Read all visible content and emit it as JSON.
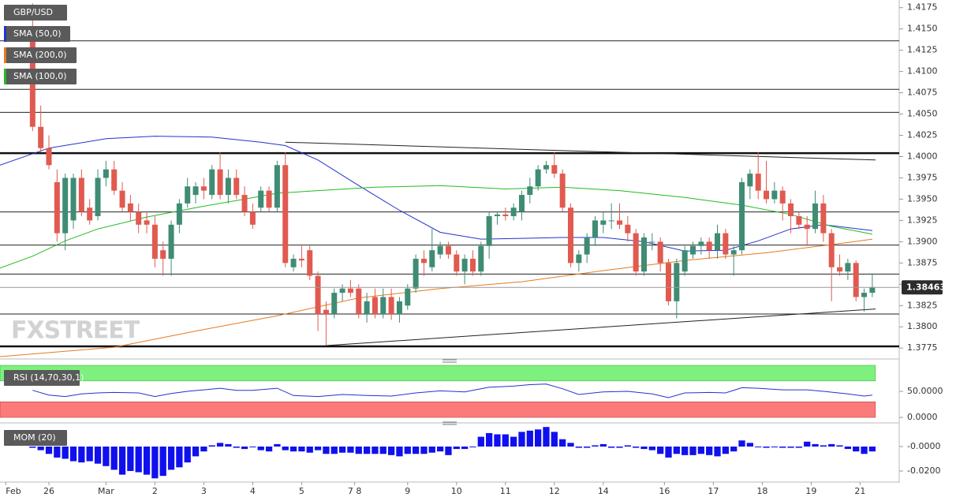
{
  "chart_data": {
    "type": "candlestick",
    "title": "GBP/USD",
    "up_color": "#3f8c74",
    "down_color": "#e05a50",
    "xlim": [
      -4,
      106.3
    ],
    "ylim": [
      1.3765,
      1.4184
    ],
    "yticks": [
      1.4175,
      {
        "value": 1.415,
        "label": "1.4150"
      },
      1.4125,
      {
        "value": 1.41,
        "label": "1.4100"
      },
      1.4075,
      {
        "value": 1.405,
        "label": "1.4050"
      },
      1.4025,
      {
        "value": 1.4,
        "label": "1.4000"
      },
      1.3975,
      {
        "value": 1.395,
        "label": "1.3950"
      },
      1.3925,
      {
        "value": 1.39,
        "label": "1.3900"
      },
      1.3875,
      {
        "value": 1.385,
        "label": "1.3850"
      },
      1.3825,
      {
        "value": 1.38,
        "label": "1.3800"
      },
      1.3775
    ],
    "xticks": [
      {
        "value": -3.3,
        "label": "Feb"
      },
      {
        "value": 2,
        "label": "26"
      },
      {
        "value": 9,
        "label": "Mar"
      },
      {
        "value": 15,
        "label": "2"
      },
      {
        "value": 21,
        "label": "3"
      },
      {
        "value": 27,
        "label": "4"
      },
      {
        "value": 33,
        "label": "5"
      },
      {
        "value": 39.5,
        "label": "7 8"
      },
      {
        "value": 46,
        "label": "9"
      },
      {
        "value": 52,
        "label": "10"
      },
      {
        "value": 58,
        "label": "11"
      },
      {
        "value": 64,
        "label": "12"
      },
      {
        "value": 70,
        "label": "14"
      },
      {
        "value": 77.5,
        "label": "16"
      },
      {
        "value": 83.5,
        "label": "17"
      },
      {
        "value": 89.5,
        "label": "18"
      },
      {
        "value": 95.5,
        "label": "19"
      },
      {
        "value": 101.5,
        "label": "21"
      }
    ],
    "levels": [
      1.4136,
      1.4079,
      1.4052,
      1.3935,
      1.3896,
      1.3862,
      1.3815
    ],
    "strong_levels": [
      1.4004,
      1.3777
    ],
    "trendlines": [
      {
        "x": [
          31,
          103.4
        ],
        "values": [
          1.4017,
          1.3996
        ]
      },
      {
        "x": [
          36,
          103.4
        ],
        "values": [
          1.3778,
          1.3821
        ]
      }
    ],
    "watermark": "FXSTREET",
    "candles": [
      [
        1.415,
        1.418,
        1.403,
        1.4035
      ],
      [
        1.4035,
        1.406,
        1.4005,
        1.401
      ],
      [
        1.401,
        1.4025,
        1.3985,
        1.399
      ],
      [
        1.397,
        1.3985,
        1.39,
        1.391
      ],
      [
        1.391,
        1.398,
        1.389,
        1.3975
      ],
      [
        1.3925,
        1.398,
        1.3915,
        1.3975
      ],
      [
        1.3975,
        1.3985,
        1.393,
        1.3935
      ],
      [
        1.394,
        1.395,
        1.392,
        1.3925
      ],
      [
        1.393,
        1.3985,
        1.3925,
        1.3975
      ],
      [
        1.3975,
        1.3995,
        1.3965,
        1.3985
      ],
      [
        1.3985,
        1.3995,
        1.3955,
        1.396
      ],
      [
        1.396,
        1.397,
        1.3935,
        1.394
      ],
      [
        1.3945,
        1.3955,
        1.3925,
        1.3935
      ],
      [
        1.3935,
        1.3945,
        1.391,
        1.392
      ],
      [
        1.3925,
        1.3935,
        1.391,
        1.392
      ],
      [
        1.392,
        1.393,
        1.387,
        1.388
      ],
      [
        1.389,
        1.39,
        1.386,
        1.388
      ],
      [
        1.388,
        1.3925,
        1.386,
        1.392
      ],
      [
        1.392,
        1.395,
        1.391,
        1.3945
      ],
      [
        1.3945,
        1.3975,
        1.394,
        1.3965
      ],
      [
        1.3955,
        1.397,
        1.3945,
        1.3965
      ],
      [
        1.3965,
        1.3975,
        1.395,
        1.396
      ],
      [
        1.3955,
        1.399,
        1.395,
        1.3985
      ],
      [
        1.3985,
        1.4005,
        1.395,
        1.3955
      ],
      [
        1.3955,
        1.3985,
        1.3945,
        1.3975
      ],
      [
        1.3975,
        1.3985,
        1.395,
        1.3955
      ],
      [
        1.3955,
        1.3965,
        1.393,
        1.3935
      ],
      [
        1.3935,
        1.3945,
        1.3915,
        1.392
      ],
      [
        1.394,
        1.3965,
        1.3935,
        1.396
      ],
      [
        1.396,
        1.3965,
        1.3935,
        1.394
      ],
      [
        1.394,
        1.3995,
        1.3935,
        1.399
      ],
      [
        1.399,
        1.4005,
        1.387,
        1.3875
      ],
      [
        1.387,
        1.3885,
        1.3865,
        1.388
      ],
      [
        1.388,
        1.3895,
        1.387,
        1.3878
      ],
      [
        1.389,
        1.3895,
        1.3855,
        1.386
      ],
      [
        1.386,
        1.3865,
        1.3795,
        1.3815
      ],
      [
        1.382,
        1.383,
        1.3778,
        1.3815
      ],
      [
        1.3815,
        1.3845,
        1.381,
        1.384
      ],
      [
        1.384,
        1.385,
        1.383,
        1.3845
      ],
      [
        1.3845,
        1.3855,
        1.3835,
        1.384
      ],
      [
        1.3845,
        1.385,
        1.381,
        1.3815
      ],
      [
        1.3815,
        1.384,
        1.3805,
        1.383
      ],
      [
        1.3835,
        1.3845,
        1.381,
        1.3815
      ],
      [
        1.3815,
        1.3845,
        1.381,
        1.3835
      ],
      [
        1.3835,
        1.3845,
        1.3808,
        1.3815
      ],
      [
        1.3815,
        1.3835,
        1.3805,
        1.383
      ],
      [
        1.3825,
        1.385,
        1.382,
        1.3845
      ],
      [
        1.3845,
        1.3885,
        1.384,
        1.388
      ],
      [
        1.388,
        1.389,
        1.386,
        1.3875
      ],
      [
        1.387,
        1.3915,
        1.3865,
        1.389
      ],
      [
        1.3885,
        1.39,
        1.388,
        1.3895
      ],
      [
        1.3895,
        1.39,
        1.388,
        1.3885
      ],
      [
        1.3885,
        1.389,
        1.386,
        1.3865
      ],
      [
        1.3865,
        1.3885,
        1.385,
        1.388
      ],
      [
        1.388,
        1.389,
        1.386,
        1.3865
      ],
      [
        1.3865,
        1.39,
        1.386,
        1.3895
      ],
      [
        1.3895,
        1.3935,
        1.388,
        1.393
      ],
      [
        1.393,
        1.3935,
        1.392,
        1.3932
      ],
      [
        1.3932,
        1.394,
        1.3925,
        1.393
      ],
      [
        1.393,
        1.3945,
        1.3925,
        1.394
      ],
      [
        1.3935,
        1.396,
        1.3925,
        1.3955
      ],
      [
        1.3955,
        1.3975,
        1.3945,
        1.3965
      ],
      [
        1.3965,
        1.399,
        1.396,
        1.3985
      ],
      [
        1.3985,
        1.3995,
        1.398,
        1.399
      ],
      [
        1.399,
        1.4005,
        1.3975,
        1.398
      ],
      [
        1.398,
        1.3985,
        1.3935,
        1.394
      ],
      [
        1.394,
        1.3945,
        1.387,
        1.3875
      ],
      [
        1.3875,
        1.389,
        1.3865,
        1.3885
      ],
      [
        1.3885,
        1.391,
        1.3875,
        1.3905
      ],
      [
        1.3905,
        1.393,
        1.3895,
        1.3925
      ],
      [
        1.392,
        1.3935,
        1.391,
        1.3925
      ],
      [
        1.3925,
        1.3945,
        1.3915,
        1.3925
      ],
      [
        1.3925,
        1.3945,
        1.3915,
        1.392
      ],
      [
        1.392,
        1.393,
        1.39,
        1.391
      ],
      [
        1.391,
        1.3915,
        1.386,
        1.3865
      ],
      [
        1.3865,
        1.391,
        1.386,
        1.3905
      ],
      [
        1.39,
        1.391,
        1.389,
        1.39
      ],
      [
        1.39,
        1.3905,
        1.3865,
        1.3875
      ],
      [
        1.3875,
        1.388,
        1.3825,
        1.383
      ],
      [
        1.383,
        1.388,
        1.381,
        1.3875
      ],
      [
        1.3865,
        1.3895,
        1.386,
        1.389
      ],
      [
        1.3885,
        1.39,
        1.388,
        1.3895
      ],
      [
        1.3895,
        1.3905,
        1.3885,
        1.39
      ],
      [
        1.39,
        1.3905,
        1.388,
        1.389
      ],
      [
        1.389,
        1.392,
        1.388,
        1.391
      ],
      [
        1.391,
        1.3915,
        1.388,
        1.3885
      ],
      [
        1.3885,
        1.3895,
        1.386,
        1.389
      ],
      [
        1.389,
        1.3975,
        1.3885,
        1.397
      ],
      [
        1.3965,
        1.3985,
        1.395,
        1.398
      ],
      [
        1.398,
        1.4005,
        1.395,
        1.396
      ],
      [
        1.396,
        1.3995,
        1.3945,
        1.395
      ],
      [
        1.395,
        1.397,
        1.3945,
        1.396
      ],
      [
        1.396,
        1.3965,
        1.3925,
        1.3945
      ],
      [
        1.3945,
        1.395,
        1.391,
        1.393
      ],
      [
        1.393,
        1.3935,
        1.3915,
        1.392
      ],
      [
        1.392,
        1.393,
        1.3895,
        1.3915
      ],
      [
        1.3915,
        1.396,
        1.391,
        1.3945
      ],
      [
        1.3945,
        1.3955,
        1.39,
        1.391
      ],
      [
        1.391,
        1.3915,
        1.383,
        1.387
      ],
      [
        1.387,
        1.3885,
        1.386,
        1.3865
      ],
      [
        1.3865,
        1.388,
        1.3855,
        1.3875
      ],
      [
        1.3875,
        1.3878,
        1.383,
        1.3835
      ],
      [
        1.3835,
        1.3845,
        1.3818,
        1.384
      ],
      [
        1.384,
        1.3862,
        1.3835,
        1.38463
      ]
    ],
    "series": [
      {
        "name": "SMA (50,0)",
        "color": "#2233cc",
        "x": [
          -4,
          2,
          9,
          15,
          22,
          28,
          31,
          35,
          40,
          45,
          50,
          55,
          60,
          65,
          70,
          75,
          80,
          85,
          89,
          93,
          97,
          103
        ],
        "values": [
          1.399,
          1.401,
          1.4021,
          1.4024,
          1.4023,
          1.4017,
          1.4013,
          1.3996,
          1.3966,
          1.3937,
          1.3911,
          1.3903,
          1.3904,
          1.3905,
          1.3905,
          1.39,
          1.3889,
          1.389,
          1.3901,
          1.3915,
          1.392,
          1.3913
        ]
      },
      {
        "name": "SMA (200,0)",
        "color": "#e87a1d",
        "x": [
          -4,
          10,
          20,
          30,
          40,
          50,
          60,
          70,
          80,
          90,
          100,
          103
        ],
        "values": [
          1.3765,
          1.3776,
          1.3795,
          1.3813,
          1.3834,
          1.3845,
          1.3853,
          1.3866,
          1.3878,
          1.3887,
          1.3899,
          1.3903
        ]
      },
      {
        "name": "SMA (100,0)",
        "color": "#22bb22",
        "x": [
          -4,
          0,
          4,
          8,
          14,
          20,
          26,
          30,
          35,
          42,
          50,
          58,
          65,
          72,
          80,
          87,
          93,
          98,
          103
        ],
        "values": [
          1.3869,
          1.3883,
          1.3901,
          1.3915,
          1.3929,
          1.394,
          1.395,
          1.3957,
          1.396,
          1.3964,
          1.3966,
          1.3962,
          1.3964,
          1.396,
          1.3952,
          1.3943,
          1.3932,
          1.3918,
          1.3909
        ]
      }
    ],
    "rsi": {
      "type": "line",
      "name": "RSI (14,70,30,1)",
      "color": "#2233cc",
      "ylim": [
        -9,
        107.6
      ],
      "yticks": [
        {
          "value": 50,
          "label": "50.0000"
        },
        {
          "value": 0,
          "label": "0.0000"
        }
      ],
      "overbought": 70,
      "oversold": 30,
      "overbought_color": "#7df07d",
      "oversold_color": "#fb7a7a",
      "x": [
        0,
        2,
        4,
        6,
        8,
        10,
        13,
        15,
        17,
        19,
        21,
        23,
        25,
        27,
        30,
        32,
        35,
        38,
        41,
        44,
        47,
        50,
        53,
        56,
        59,
        61,
        63,
        65,
        67,
        70,
        73,
        76,
        78,
        80,
        83,
        85,
        87,
        89,
        92,
        95,
        97,
        100,
        102,
        103
      ],
      "values": [
        52,
        43,
        40,
        45,
        47,
        48,
        47,
        40,
        46,
        50,
        53,
        56,
        52,
        52,
        56,
        42,
        40,
        44,
        42,
        41,
        47,
        51,
        49,
        58,
        60,
        63,
        64,
        55,
        44,
        49,
        50,
        45,
        38,
        47,
        48,
        47,
        57,
        56,
        53,
        53,
        50,
        45,
        41,
        43
      ]
    },
    "mom": {
      "type": "bar",
      "name": "MOM (20)",
      "color": "#1010ee",
      "ylim": [
        -0.0284,
        0.0187
      ],
      "yticks": [
        {
          "value": 0,
          "label": "-0.0000"
        },
        {
          "value": -0.02,
          "label": "-0.0200"
        }
      ],
      "values": [
        -0.001,
        -0.003,
        -0.006,
        -0.009,
        -0.01,
        -0.012,
        -0.013,
        -0.012,
        -0.014,
        -0.016,
        -0.019,
        -0.023,
        -0.02,
        -0.021,
        -0.023,
        -0.026,
        -0.024,
        -0.019,
        -0.017,
        -0.013,
        -0.008,
        -0.004,
        0.001,
        0.003,
        0.002,
        -0.001,
        -0.002,
        0.0,
        -0.003,
        -0.004,
        0.002,
        -0.003,
        -0.004,
        -0.004,
        -0.005,
        -0.003,
        -0.006,
        -0.006,
        -0.005,
        -0.005,
        -0.006,
        -0.006,
        -0.006,
        -0.006,
        -0.007,
        -0.008,
        -0.006,
        -0.006,
        -0.006,
        -0.005,
        -0.004,
        -0.007,
        -0.002,
        -0.002,
        0.0,
        0.008,
        0.011,
        0.01,
        0.01,
        0.008,
        0.012,
        0.013,
        0.014,
        0.016,
        0.012,
        0.006,
        0.003,
        -0.001,
        -0.001,
        0.001,
        0.002,
        -0.001,
        -0.001,
        0.001,
        -0.001,
        -0.002,
        -0.003,
        -0.006,
        -0.009,
        -0.006,
        -0.007,
        -0.007,
        -0.006,
        -0.007,
        -0.008,
        -0.006,
        -0.004,
        0.005,
        0.003,
        0.0,
        -0.001,
        0.0,
        -0.001,
        -0.001,
        -0.001,
        0.004,
        0.002,
        0.001,
        0.002,
        0.001,
        -0.002,
        -0.004,
        -0.006,
        -0.004
      ]
    }
  }
}
